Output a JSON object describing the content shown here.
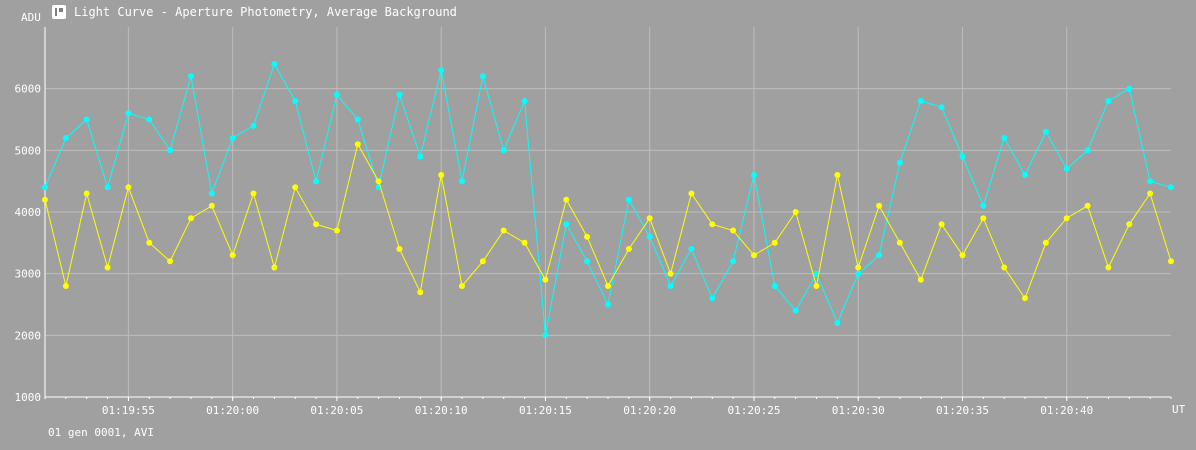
{
  "window": {
    "title": "Light Curve - Aperture Photometry, Average Background",
    "icon": "light-curve-app-icon"
  },
  "footer": {
    "text": "01 gen 0001, AVI"
  },
  "colors": {
    "background": "#a0a0a0",
    "grid": "#bdbdbd",
    "series1": "#00ffff",
    "series2": "#ffff00",
    "text": "#ffffff"
  },
  "chart_data": {
    "type": "line",
    "ylabel": "ADU",
    "xlabel": "UT",
    "ylim": [
      1000,
      7000
    ],
    "xlim": [
      "01:19:51",
      "01:20:45"
    ],
    "y_ticks": [
      1000,
      2000,
      3000,
      4000,
      5000,
      6000
    ],
    "x_ticks": [
      "01:19:55",
      "01:20:00",
      "01:20:05",
      "01:20:10",
      "01:20:15",
      "01:20:20",
      "01:20:25",
      "01:20:30",
      "01:20:35",
      "01:20:40"
    ],
    "x": [
      51,
      52,
      53,
      54,
      55,
      56,
      57,
      58,
      59,
      60,
      61,
      62,
      63,
      64,
      65,
      66,
      67,
      68,
      69,
      70,
      71,
      72,
      73,
      74,
      75,
      76,
      77,
      78,
      79,
      80,
      81,
      82,
      83,
      84,
      85,
      86,
      87,
      88,
      89,
      90,
      91,
      92,
      93,
      94,
      95,
      96,
      97,
      98,
      99,
      100,
      101,
      102,
      103,
      104,
      105
    ],
    "x_unit": "seconds after 01:19:00",
    "grid": true,
    "series": [
      {
        "values": [
          4400,
          5200,
          5500,
          4400,
          5600,
          5500,
          5000,
          6200,
          4300,
          5200,
          5400,
          6400,
          5800,
          4500,
          5900,
          5500,
          4400,
          5900,
          4900,
          6300,
          4500,
          6200,
          5000,
          5800,
          2000,
          3800,
          3200,
          2500,
          4200,
          3600,
          2800,
          3400,
          2600,
          3200,
          4600,
          2800,
          2400,
          3000,
          2200,
          3000,
          3300,
          4800,
          5800,
          5700,
          4900,
          4100,
          5200,
          4600,
          5300,
          4700,
          5000,
          5800,
          6000,
          4500,
          4400
        ]
      },
      {
        "values": [
          4200,
          2800,
          4300,
          3100,
          4400,
          3500,
          3200,
          3900,
          4100,
          3300,
          4300,
          3100,
          4400,
          3800,
          3700,
          5100,
          4500,
          3400,
          2700,
          4600,
          2800,
          3200,
          3700,
          3500,
          2900,
          4200,
          3600,
          2800,
          3400,
          3900,
          3000,
          4300,
          3800,
          3700,
          3300,
          3500,
          4000,
          2800,
          4600,
          3100,
          4100,
          3500,
          2900,
          3800,
          3300,
          3900,
          3100,
          2600,
          3500,
          3900,
          4100,
          3100,
          3800,
          4300,
          3200
        ]
      }
    ]
  }
}
